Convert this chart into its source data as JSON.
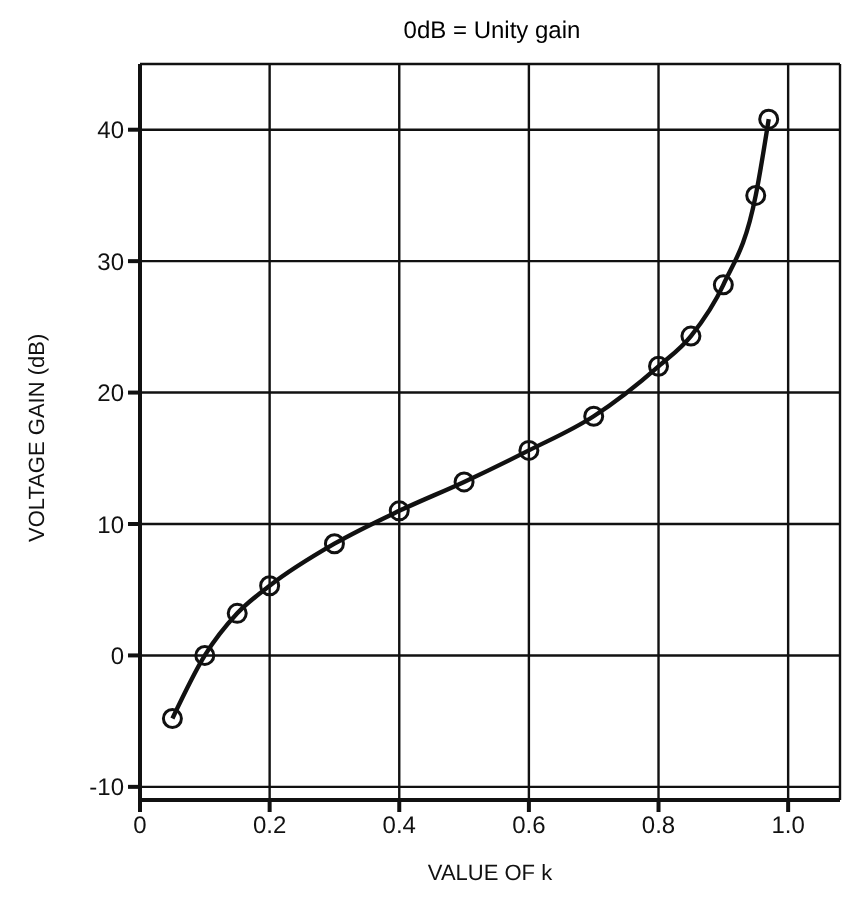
{
  "chart_data": {
    "type": "line",
    "title": "0dB = Unity gain",
    "xlabel": "VALUE OF k",
    "ylabel": "VOLTAGE  GAIN (dB)",
    "x": [
      0.05,
      0.1,
      0.15,
      0.2,
      0.3,
      0.4,
      0.5,
      0.6,
      0.7,
      0.8,
      0.85,
      0.9,
      0.95,
      0.97
    ],
    "series": [
      {
        "color": "#111111",
        "values": [
          -4.8,
          0,
          3.2,
          5.3,
          8.5,
          11,
          13.2,
          15.6,
          18.2,
          22,
          24.3,
          28.2,
          35,
          40.8
        ]
      }
    ],
    "xlim": [
      0,
      1.08
    ],
    "xticks": [
      0,
      0.2,
      0.4,
      0.6,
      0.8,
      {
        "value": 1,
        "label": "1.0"
      }
    ],
    "ylim": [
      -11,
      45
    ],
    "yticks": [
      -10,
      0,
      10,
      20,
      30,
      40
    ],
    "grid": true,
    "marker": "circle",
    "line_style": "solid",
    "legend": false
  }
}
